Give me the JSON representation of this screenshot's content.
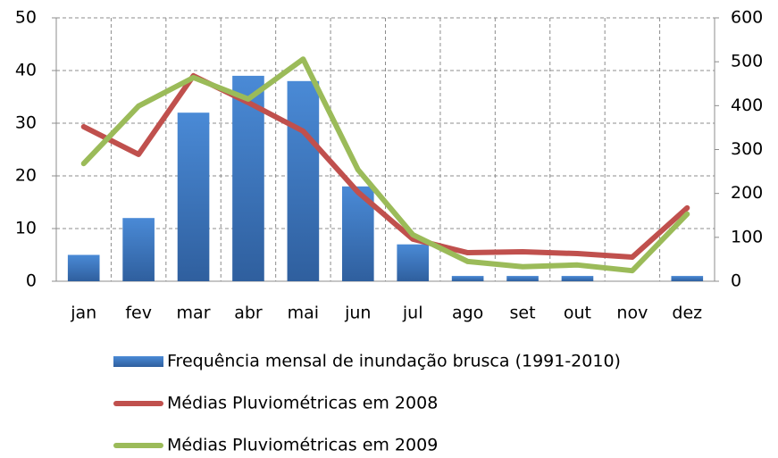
{
  "chart_data": {
    "type": "bar",
    "categories": [
      "jan",
      "fev",
      "mar",
      "abr",
      "mai",
      "jun",
      "jul",
      "ago",
      "set",
      "out",
      "nov",
      "dez"
    ],
    "series": [
      {
        "name": "Frequência mensal de inundação brusca (1991-2010)",
        "type": "bar",
        "color": "#3f77c0",
        "values": [
          5,
          12,
          32,
          39,
          38,
          18,
          7,
          1,
          1,
          1,
          0,
          1
        ]
      },
      {
        "name": "Médias Pluviométricas em 2008",
        "type": "line",
        "axis": "y2",
        "color": "#c0504d",
        "values": [
          352,
          289,
          468,
          407,
          342,
          203,
          96,
          65,
          67,
          63,
          55,
          167
        ]
      },
      {
        "name": "Médias Pluviométricas em 2009",
        "type": "line",
        "axis": "y2",
        "color": "#9bbb59",
        "values": [
          268,
          399,
          464,
          415,
          506,
          254,
          106,
          45,
          33,
          37,
          24,
          153
        ]
      }
    ],
    "ylim": [
      0,
      50
    ],
    "yticks": [
      0,
      10,
      20,
      30,
      40,
      50
    ],
    "y2lim": [
      0,
      600
    ],
    "y2ticks": [
      0,
      100,
      200,
      300,
      400,
      500,
      600
    ],
    "grid": true
  }
}
